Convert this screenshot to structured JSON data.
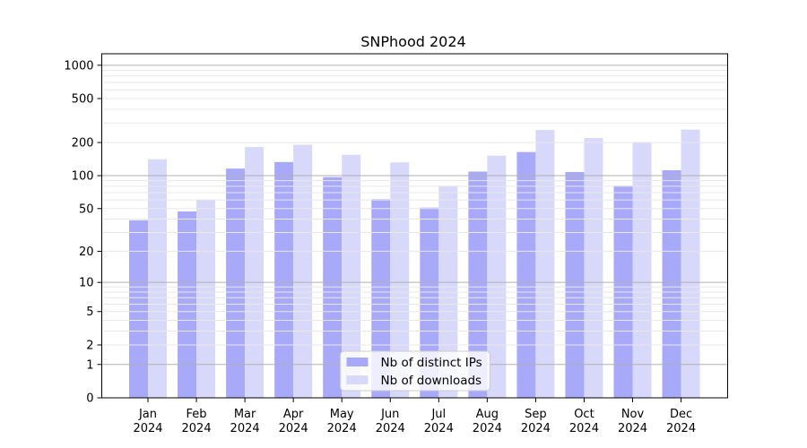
{
  "figure": {
    "background": "#ffffff",
    "axis_color": "#000000"
  },
  "chart_data": {
    "type": "bar",
    "title": "SNPhood 2024",
    "categories": [
      "Jan",
      "Feb",
      "Mar",
      "Apr",
      "May",
      "Jun",
      "Jul",
      "Aug",
      "Sep",
      "Oct",
      "Nov",
      "Dec"
    ],
    "x_tick_second_line": "2024",
    "series": [
      {
        "name": "Nb of distinct IPs",
        "color": "#a9a9fa",
        "values": [
          39,
          47,
          116,
          133,
          97,
          61,
          51,
          109,
          164,
          108,
          81,
          112
        ]
      },
      {
        "name": "Nb of downloads",
        "color": "#d8d8fb",
        "values": [
          141,
          60,
          182,
          191,
          155,
          132,
          81,
          152,
          260,
          220,
          202,
          262
        ]
      }
    ],
    "yticks": [
      0,
      1,
      2,
      5,
      10,
      20,
      50,
      100,
      200,
      500,
      1000
    ],
    "scale": "log1p",
    "ylim": [
      0,
      1270
    ],
    "grid": {
      "on": true,
      "major_values": [
        1,
        10,
        100,
        1000
      ],
      "major_color": "#b0b0b0",
      "minor_color": "#e8e8e8"
    },
    "legend": {
      "position": "lower center",
      "frame_color": "#cccccc",
      "frame_fill": "#ffffff"
    }
  }
}
